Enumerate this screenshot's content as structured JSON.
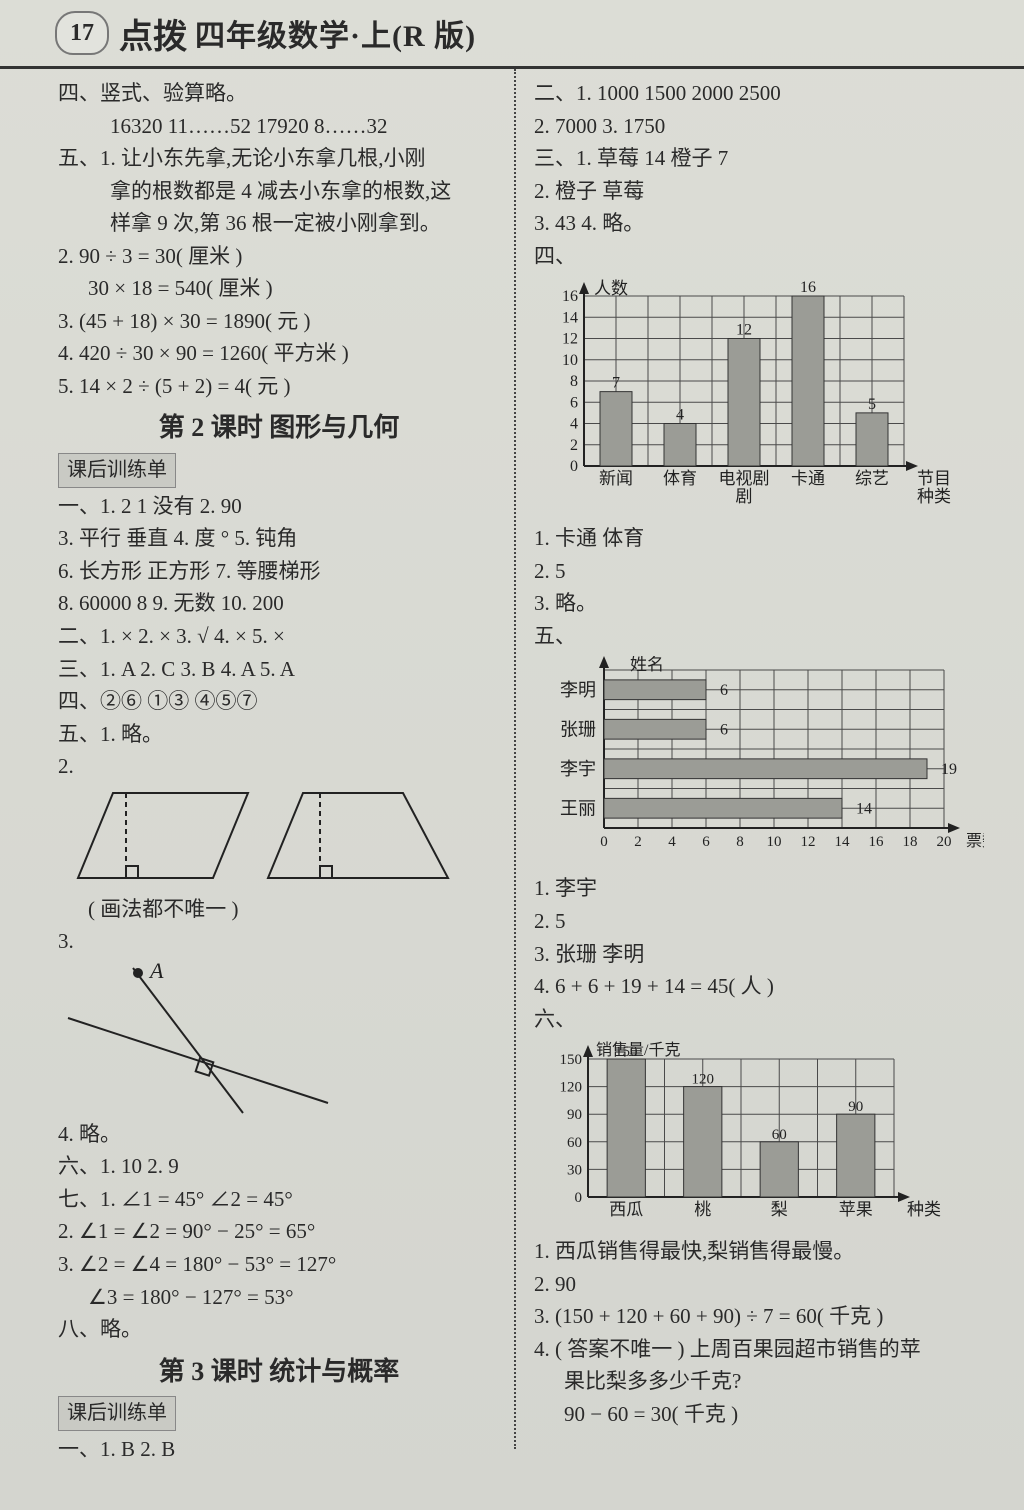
{
  "header": {
    "page_num": "17",
    "brand": "点拨",
    "title": "四年级数学·上(R 版)"
  },
  "left": {
    "l1": "四、竖式、验算略。",
    "l2": "16320   11……52   17920   8……32",
    "l3": "五、1. 让小东先拿,无论小东拿几根,小刚",
    "l3b": "拿的根数都是 4 减去小东拿的根数,这",
    "l3c": "样拿 9 次,第 36 根一定被小刚拿到。",
    "l4": "2. 90 ÷ 3 = 30( 厘米 )",
    "l5": "30 × 18 = 540( 厘米 )",
    "l6": "3. (45 + 18) × 30 = 1890( 元 )",
    "l7": "4. 420 ÷ 30 × 90 = 1260( 平方米 )",
    "l8": "5. 14 × 2 ÷ (5 + 2) = 4( 元 )",
    "title2": "第 2 课时   图形与几何",
    "box2": "课后训练单",
    "a1": "一、1. 2   1   没有   2. 90",
    "a2": "3. 平行   垂直   4. 度   °   5. 钝角",
    "a3": "6. 长方形   正方形   7. 等腰梯形",
    "a4": "8. 60000   8   9. 无数   10. 200",
    "a5": "二、1. ×   2. ×   3. √   4. ×   5. ×",
    "a6": "三、1. A   2. C   3. B   4. A   5. A",
    "a7": "四、②⑥   ①③   ④⑤⑦",
    "a8": "五、1. 略。",
    "a9": "2.",
    "a10": "( 画法都不唯一 )",
    "a11": "3.",
    "a11b": "A",
    "a12": "4. 略。",
    "a13": "六、1. 10   2. 9",
    "a14": "七、1. ∠1 = 45°   ∠2 = 45°",
    "a15": "2. ∠1 = ∠2 = 90° − 25° = 65°",
    "a16": "3. ∠2 = ∠4 = 180° − 53° = 127°",
    "a17": "∠3 = 180° − 127° = 53°",
    "a18": "八、略。",
    "title3": "第 3 课时   统计与概率",
    "box3": "课后训练单",
    "b1": "一、1. B   2. B"
  },
  "right": {
    "r1": "二、1. 1000   1500   2000   2500",
    "r2": "2. 7000   3. 1750",
    "r3": "三、1. 草莓   14   橙子   7",
    "r4": "2. 橙子   草莓",
    "r5": "3. 43   4. 略。",
    "r6": "四、",
    "chart1": {
      "ylabel": "人数",
      "xlabel": "节目",
      "categories": [
        "新闻",
        "体育",
        "电视剧",
        "卡通",
        "综艺"
      ],
      "cat2": [
        "",
        "",
        "剧",
        "",
        "",
        "种类"
      ],
      "values": [
        7,
        4,
        12,
        16,
        5
      ],
      "ymax": 16,
      "ytick": 2,
      "bar_fill": "#9b9c96",
      "grid": "#4a4a4a",
      "bg": "#e0e1db",
      "label_peak": "16"
    },
    "r7": "1. 卡通   体育",
    "r8": "2. 5",
    "r9": "3. 略。",
    "r10": "五、",
    "chart2": {
      "xlabel": "姓名",
      "countlabel": "票数",
      "names": [
        "李明",
        "张珊",
        "李宇",
        "王丽"
      ],
      "values": [
        6,
        6,
        19,
        14
      ],
      "xmax": 20,
      "xtick": 2,
      "bar_fill": "#9b9c96",
      "grid": "#4a4a4a"
    },
    "r11": "1. 李宇",
    "r12": "2. 5",
    "r13": "3. 张珊   李明",
    "r14": "4. 6 + 6 + 19 + 14 = 45( 人 )",
    "r15": "六、",
    "chart3": {
      "ylabel": "销售量/千克",
      "xlabel": "种类",
      "categories": [
        "西瓜",
        "桃",
        "梨",
        "苹果"
      ],
      "values": [
        150,
        120,
        60,
        90
      ],
      "ymax": 150,
      "ytick": 30,
      "bar_fill": "#9b9c96",
      "grid": "#4a4a4a"
    },
    "r16": "1. 西瓜销售得最快,梨销售得最慢。",
    "r17": "2. 90",
    "r18": "3. (150 + 120 + 60 + 90) ÷ 7 = 60( 千克 )",
    "r19": "4. ( 答案不唯一 ) 上周百果园超市销售的苹",
    "r19b": "果比梨多多少千克?",
    "r19c": "90 − 60 = 30( 千克 )"
  }
}
